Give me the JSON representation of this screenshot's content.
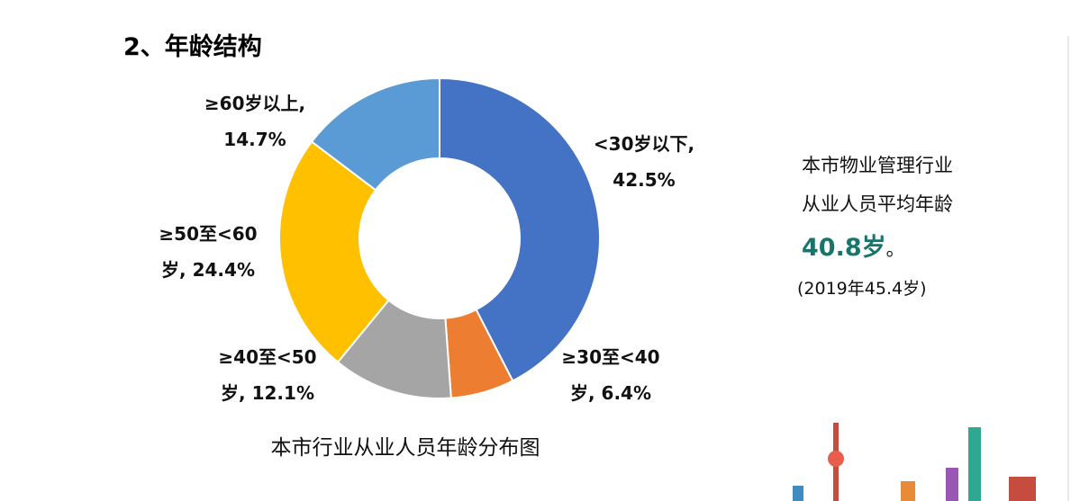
{
  "heading": "2、年龄结构",
  "chart_data": {
    "type": "donut",
    "caption": "本市行业从业人员年龄分布图",
    "categories": [
      "<30岁以下,",
      "≥30至<40岁,",
      "≥40至<50岁,",
      "≥50至<60岁,",
      "≥60岁以上,"
    ],
    "values": [
      42.5,
      6.4,
      12.1,
      24.4,
      14.7
    ],
    "value_labels": [
      "42.5%",
      "6.4%",
      "12.1%",
      "24.4%",
      "14.7%"
    ],
    "colors": [
      "#4472c4",
      "#ed7d31",
      "#a5a5a5",
      "#ffc000",
      "#5b9bd5"
    ]
  },
  "side_note": {
    "line1": "本市物业管理行业",
    "line2": "从业人员平均年龄",
    "highlight": "40.8岁",
    "punct": "。",
    "previous": "(2019年45.4岁)"
  }
}
